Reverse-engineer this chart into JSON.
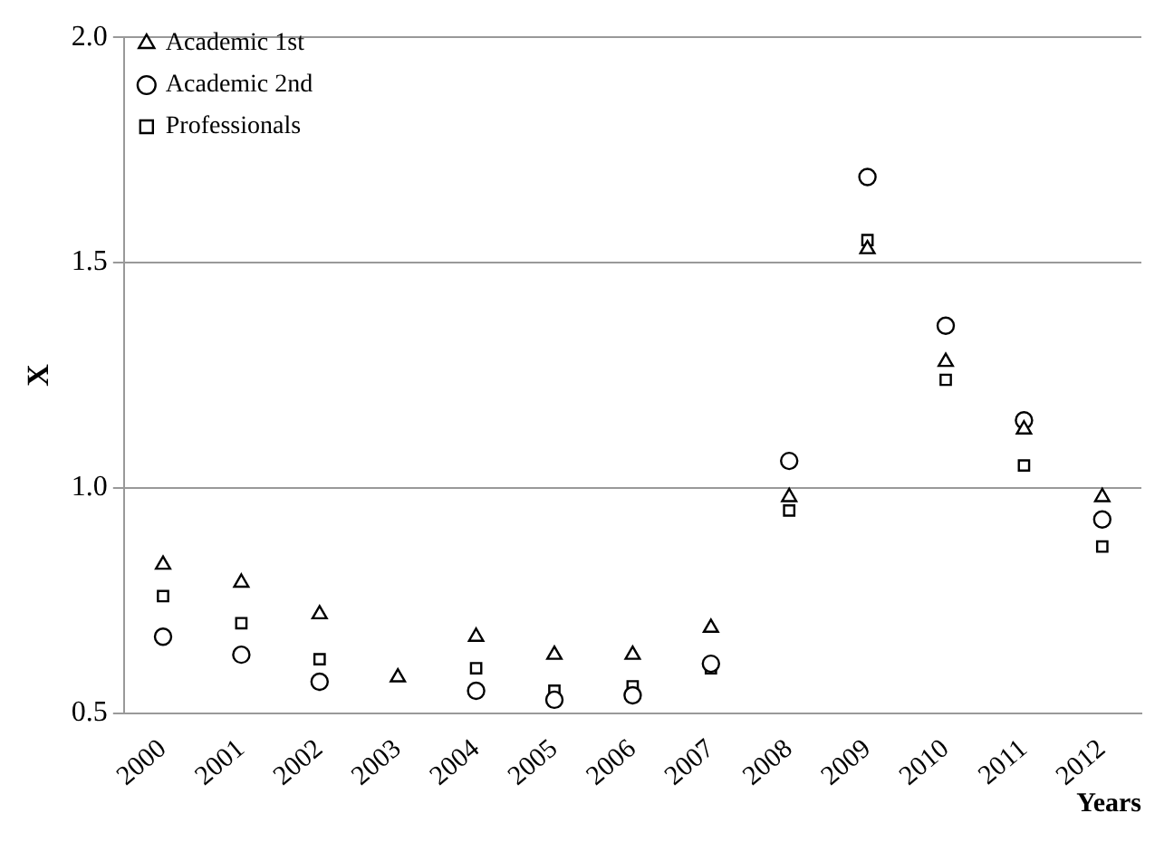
{
  "chart_data": {
    "type": "scatter",
    "xlabel": "Years",
    "ylabel": "X",
    "categories": [
      "2000",
      "2001",
      "2002",
      "2003",
      "2004",
      "2005",
      "2006",
      "2007",
      "2008",
      "2009",
      "2010",
      "2011",
      "2012"
    ],
    "series": [
      {
        "name": "Academic 1st",
        "color": "#000000",
        "marker": "triangle",
        "values": [
          0.83,
          0.79,
          0.72,
          0.58,
          0.67,
          0.63,
          0.63,
          0.69,
          0.98,
          1.53,
          1.28,
          1.13,
          0.98
        ]
      },
      {
        "name": "Academic 2nd",
        "color": "#000000",
        "marker": "circle",
        "values": [
          0.67,
          0.63,
          0.57,
          null,
          0.55,
          0.53,
          0.54,
          0.61,
          1.06,
          1.69,
          1.36,
          1.15,
          0.93
        ]
      },
      {
        "name": "Professionals",
        "color": "#000000",
        "marker": "square",
        "values": [
          0.76,
          0.7,
          0.62,
          null,
          0.6,
          0.55,
          0.56,
          0.6,
          0.95,
          1.55,
          1.24,
          1.05,
          0.87
        ]
      }
    ],
    "ylim": [
      0.5,
      2.0
    ],
    "yticks": [
      0.5,
      {
        "value": 1,
        "label": "1.0"
      },
      1.5,
      {
        "value": 2,
        "label": "2.0"
      }
    ],
    "grid": "y",
    "legend": "top left"
  }
}
